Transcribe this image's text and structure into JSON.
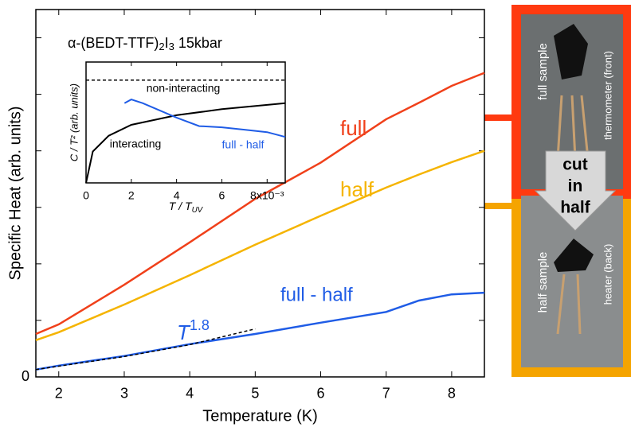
{
  "chart_data": [
    {
      "type": "line",
      "title": [
        "α-(BEDT-TTF)",
        "2",
        "I",
        "3",
        "  15kbar"
      ],
      "xlabel": "Temperature (K)",
      "ylabel": "Specific Heat (arb. units)",
      "xlim": [
        1.65,
        8.5
      ],
      "ylim": [
        0,
        6.5
      ],
      "xticks": [
        2,
        3,
        4,
        5,
        6,
        7,
        8
      ],
      "yticks": [
        0
      ],
      "y_minor_ticks": [
        1,
        2,
        3,
        4,
        5,
        6
      ],
      "x": [
        1.65,
        2,
        3,
        4,
        5,
        6,
        7,
        7.5,
        8,
        8.5
      ],
      "series": [
        {
          "name": "full",
          "color": "#f0401a",
          "values": [
            0.76,
            0.93,
            1.63,
            2.38,
            3.15,
            3.79,
            4.56,
            4.85,
            5.15,
            5.38
          ]
        },
        {
          "name": "half",
          "color": "#f5b400",
          "values": [
            0.65,
            0.79,
            1.28,
            1.8,
            2.34,
            2.85,
            3.35,
            3.58,
            3.8,
            4.0
          ]
        },
        {
          "name": "full - half",
          "color": "#1f5ce6",
          "values": [
            0.13,
            0.2,
            0.37,
            0.58,
            0.76,
            0.96,
            1.15,
            1.35,
            1.46,
            1.49
          ]
        },
        {
          "color": "#000000",
          "dash": true,
          "values": [
            0.13,
            0.19,
            0.36,
            0.57,
            0.85,
            null,
            null,
            null,
            null,
            null
          ]
        }
      ],
      "fit_label": [
        "T",
        "1.8"
      ]
    },
    {
      "type": "line",
      "xlabel": [
        "T / T",
        "UV"
      ],
      "ylabel": "C / T² (arb. units)",
      "xlim": [
        0,
        0.0088
      ],
      "ylim": [
        0,
        1
      ],
      "xticks": [
        0,
        {
          "value": 0.002,
          "label": "2"
        },
        {
          "value": 0.004,
          "label": "4"
        },
        {
          "value": 0.006,
          "label": "6"
        },
        {
          "value": 0.008,
          "label": "8x10⁻³"
        }
      ],
      "series": [
        {
          "name": "non-interacting",
          "color": "#000000",
          "dash": true,
          "x": [
            0,
            0.0088
          ],
          "values": [
            0.85,
            0.85
          ]
        },
        {
          "name": "interacting",
          "color": "#000000",
          "x": [
            0,
            0.0003,
            0.001,
            0.002,
            0.004,
            0.006,
            0.0088
          ],
          "values": [
            0,
            0.26,
            0.39,
            0.48,
            0.56,
            0.61,
            0.66
          ]
        },
        {
          "name": "full - half",
          "color": "#1f5ce6",
          "x": [
            0.0017,
            0.002,
            0.0025,
            0.004,
            0.005,
            0.006,
            0.007,
            0.008,
            0.0088
          ],
          "values": [
            0.66,
            0.69,
            0.66,
            0.54,
            0.47,
            0.46,
            0.44,
            0.42,
            0.38
          ]
        }
      ]
    }
  ],
  "photo_panel": {
    "full_sample": "full sample",
    "thermometer": "thermometer (front)",
    "cut": [
      "cut",
      "in",
      "half"
    ],
    "half_sample": "half sample",
    "heater": "heater (back)"
  }
}
